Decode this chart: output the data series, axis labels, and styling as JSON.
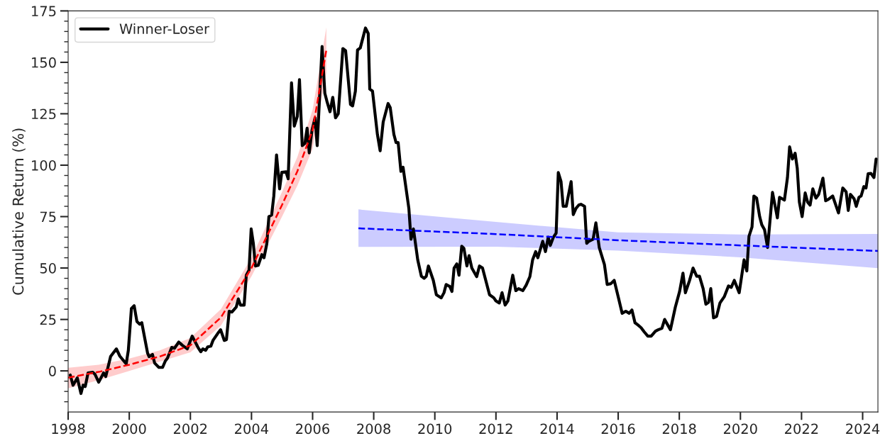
{
  "chart_data": {
    "type": "line",
    "ylabel": "Cumulative Return (%)",
    "xlim": [
      1998,
      2024.5
    ],
    "ylim": [
      -20,
      175
    ],
    "xticks": [
      1998,
      2000,
      2002,
      2004,
      2006,
      2008,
      2010,
      2012,
      2014,
      2016,
      2018,
      2020,
      2022,
      2024
    ],
    "yticks": [
      {
        "value": -15,
        "label": null
      },
      {
        "value": -10,
        "label": null
      },
      {
        "value": -5,
        "label": null
      },
      0,
      {
        "value": 5,
        "label": null
      },
      {
        "value": 10,
        "label": null
      },
      {
        "value": 15,
        "label": null
      },
      {
        "value": 20,
        "label": null
      },
      25,
      {
        "value": 30,
        "label": null
      },
      {
        "value": 35,
        "label": null
      },
      {
        "value": 40,
        "label": null
      },
      {
        "value": 45,
        "label": null
      },
      50,
      {
        "value": 55,
        "label": null
      },
      {
        "value": 60,
        "label": null
      },
      {
        "value": 65,
        "label": null
      },
      {
        "value": 70,
        "label": null
      },
      75,
      {
        "value": 80,
        "label": null
      },
      {
        "value": 85,
        "label": null
      },
      {
        "value": 90,
        "label": null
      },
      {
        "value": 95,
        "label": null
      },
      100,
      {
        "value": 105,
        "label": null
      },
      {
        "value": 110,
        "label": null
      },
      {
        "value": 115,
        "label": null
      },
      {
        "value": 120,
        "label": null
      },
      125,
      {
        "value": 130,
        "label": null
      },
      {
        "value": 135,
        "label": null
      },
      {
        "value": 140,
        "label": null
      },
      {
        "value": 145,
        "label": null
      },
      150,
      {
        "value": 155,
        "label": null
      },
      {
        "value": 160,
        "label": null
      },
      {
        "value": 165,
        "label": null
      },
      {
        "value": 170,
        "label": null
      },
      175
    ],
    "grid": false,
    "legend": "top left",
    "marker": "none",
    "series": [
      {
        "name": "Winner-Loser",
        "color": "#000000",
        "line_style": "solid",
        "x": [
          1998.07,
          1998.16,
          1998.3,
          1998.42,
          1998.49,
          1998.56,
          1998.65,
          1998.81,
          1998.88,
          1999.0,
          1999.16,
          1999.23,
          1999.39,
          1999.58,
          1999.69,
          1999.9,
          1999.97,
          2000.07,
          2000.16,
          2000.25,
          2000.34,
          2000.41,
          2000.6,
          2000.65,
          2000.76,
          2000.83,
          2000.97,
          2001.09,
          2001.18,
          2001.25,
          2001.39,
          2001.48,
          2001.62,
          2001.74,
          2001.9,
          2002.06,
          2002.25,
          2002.34,
          2002.41,
          2002.5,
          2002.57,
          2002.67,
          2002.74,
          2002.9,
          2002.99,
          2003.11,
          2003.18,
          2003.27,
          2003.36,
          2003.5,
          2003.57,
          2003.64,
          2003.76,
          2003.83,
          2003.92,
          2003.99,
          2004.06,
          2004.13,
          2004.22,
          2004.34,
          2004.41,
          2004.5,
          2004.57,
          2004.66,
          2004.73,
          2004.82,
          2004.92,
          2004.99,
          2005.13,
          2005.2,
          2005.31,
          2005.4,
          2005.5,
          2005.57,
          2005.66,
          2005.75,
          2005.82,
          2005.89,
          2005.98,
          2006.08,
          2006.15,
          2006.31,
          2006.4,
          2006.47,
          2006.57,
          2006.66,
          2006.75,
          2006.84,
          2006.99,
          2007.08,
          2007.24,
          2007.31,
          2007.4,
          2007.47,
          2007.56,
          2007.73,
          2007.82,
          2007.87,
          2007.96,
          2008.12,
          2008.21,
          2008.31,
          2008.47,
          2008.54,
          2008.66,
          2008.73,
          2008.8,
          2008.89,
          2008.96,
          2009.15,
          2009.22,
          2009.3,
          2009.44,
          2009.56,
          2009.65,
          2009.72,
          2009.79,
          2009.95,
          2010.05,
          2010.21,
          2010.3,
          2010.37,
          2010.49,
          2010.56,
          2010.63,
          2010.72,
          2010.79,
          2010.88,
          2010.95,
          2011.05,
          2011.12,
          2011.21,
          2011.37,
          2011.46,
          2011.56,
          2011.79,
          2011.93,
          2012.0,
          2012.11,
          2012.2,
          2012.3,
          2012.39,
          2012.55,
          2012.65,
          2012.74,
          2012.88,
          2012.99,
          2013.11,
          2013.2,
          2013.3,
          2013.37,
          2013.53,
          2013.62,
          2013.71,
          2013.78,
          2013.88,
          2013.97,
          2014.04,
          2014.13,
          2014.2,
          2014.3,
          2014.46,
          2014.53,
          2014.62,
          2014.71,
          2014.78,
          2014.9,
          2014.97,
          2015.04,
          2015.18,
          2015.27,
          2015.38,
          2015.55,
          2015.64,
          2015.76,
          2015.87,
          2016.01,
          2016.13,
          2016.25,
          2016.36,
          2016.45,
          2016.55,
          2016.64,
          2016.75,
          2016.85,
          2016.97,
          2017.08,
          2017.22,
          2017.31,
          2017.43,
          2017.52,
          2017.71,
          2017.87,
          2018.01,
          2018.12,
          2018.2,
          2018.33,
          2018.45,
          2018.57,
          2018.66,
          2018.78,
          2018.87,
          2018.96,
          2019.03,
          2019.12,
          2019.22,
          2019.33,
          2019.47,
          2019.61,
          2019.7,
          2019.8,
          2019.96,
          2020.12,
          2020.21,
          2020.28,
          2020.38,
          2020.44,
          2020.53,
          2020.63,
          2020.7,
          2020.79,
          2020.89,
          2020.98,
          2021.05,
          2021.21,
          2021.28,
          2021.44,
          2021.54,
          2021.61,
          2021.7,
          2021.79,
          2021.86,
          2021.93,
          2022.02,
          2022.12,
          2022.2,
          2022.28,
          2022.37,
          2022.47,
          2022.56,
          2022.7,
          2022.79,
          2022.88,
          2023.02,
          2023.21,
          2023.35,
          2023.46,
          2023.53,
          2023.6,
          2023.72,
          2023.79,
          2023.88,
          2023.95,
          2024.04,
          2024.11,
          2024.18,
          2024.27,
          2024.37,
          2024.44
        ],
        "values": [
          -2,
          -7,
          -3.4,
          -11,
          -6.9,
          -7.6,
          -1,
          -0.7,
          -1.7,
          -5.5,
          -1,
          -2.8,
          7,
          10.7,
          7.2,
          3.4,
          10,
          30.3,
          31.7,
          24,
          22.7,
          23.4,
          8.6,
          6.9,
          8,
          3.8,
          1.7,
          1.7,
          4.8,
          6.2,
          11.4,
          11,
          14,
          12.4,
          10.7,
          16.9,
          11.4,
          9.3,
          10.7,
          10,
          11.7,
          12,
          14.8,
          18.3,
          20,
          14.8,
          15.2,
          29,
          28.6,
          31,
          35,
          32,
          32,
          46.5,
          49,
          69,
          62,
          51,
          51.3,
          56.5,
          55,
          61.7,
          75,
          75.8,
          85,
          105,
          88.5,
          96.5,
          96.8,
          93.4,
          140,
          119,
          123.7,
          141.6,
          109.5,
          110.6,
          118,
          106,
          117,
          123,
          109.5,
          157.7,
          135,
          131,
          126,
          133,
          123,
          125,
          156.7,
          155.7,
          129.5,
          128.8,
          136,
          156,
          157,
          166.7,
          164,
          137,
          136,
          115,
          107,
          121,
          130,
          128,
          115,
          111,
          111,
          97,
          99,
          79,
          64,
          69,
          54,
          46,
          45,
          46,
          51,
          44,
          37,
          35.5,
          38,
          42,
          41,
          38.6,
          50,
          52,
          46.5,
          60.6,
          59.6,
          51,
          56,
          50,
          45.8,
          51,
          50,
          37,
          35.5,
          34,
          33,
          38,
          32,
          34,
          46.5,
          39,
          40,
          39,
          41.7,
          45.8,
          54,
          58,
          55,
          63,
          58,
          65,
          61,
          65,
          67,
          96.4,
          92,
          80,
          80,
          92,
          76,
          79,
          80.6,
          81,
          80,
          62,
          63,
          64,
          72,
          60,
          51.7,
          42,
          42.4,
          44,
          35.5,
          28,
          29,
          28,
          29.6,
          23.4,
          22.4,
          21,
          19,
          16.9,
          16.9,
          19.3,
          20,
          20.7,
          25,
          20,
          31,
          38.6,
          47.5,
          38,
          43.7,
          50,
          46,
          46,
          40,
          32.4,
          33.4,
          40,
          25.8,
          26.5,
          33,
          36,
          41.3,
          40.6,
          44,
          38,
          54,
          48.6,
          65.4,
          70,
          85,
          84,
          75,
          71,
          68.6,
          60,
          75,
          86.8,
          74.4,
          84.4,
          83,
          94,
          108.9,
          103,
          105.8,
          98.5,
          82,
          75,
          86.5,
          82,
          80.6,
          88.5,
          84,
          85.8,
          93.7,
          82.7,
          83.4,
          85,
          76.8,
          88.9,
          87,
          78,
          85.8,
          83.7,
          80,
          84.4,
          85,
          89.6,
          88.9,
          95.8,
          96,
          94,
          103
        ]
      },
      {
        "color": "#ff0000",
        "line_style": "dashed",
        "x": [
          1998.0,
          1999.0,
          2000.0,
          2001.0,
          2002.0,
          2003.0,
          2004.0,
          2005.0,
          2005.5,
          2006.0,
          2006.45
        ],
        "values": [
          -3.3,
          -0.5,
          3,
          7,
          12.4,
          26,
          50,
          80.7,
          97,
          117,
          156
        ],
        "lower": [
          -8.5,
          -4.5,
          0,
          4.5,
          9,
          22,
          46,
          75,
          90,
          108,
          145
        ],
        "upper": [
          1.5,
          3,
          6,
          10,
          16,
          30,
          55,
          87,
          104,
          127,
          167
        ]
      },
      {
        "color": "#0000ff",
        "line_style": "dashed",
        "x": [
          2007.5,
          2012,
          2016,
          2020,
          2024.5
        ],
        "values": [
          69.3,
          66.5,
          63.5,
          61,
          58.3
        ],
        "lower": [
          60.3,
          60.4,
          58.5,
          55.2,
          49.9
        ],
        "upper": [
          78.5,
          72.4,
          67.3,
          66.3,
          66.6
        ]
      }
    ]
  }
}
